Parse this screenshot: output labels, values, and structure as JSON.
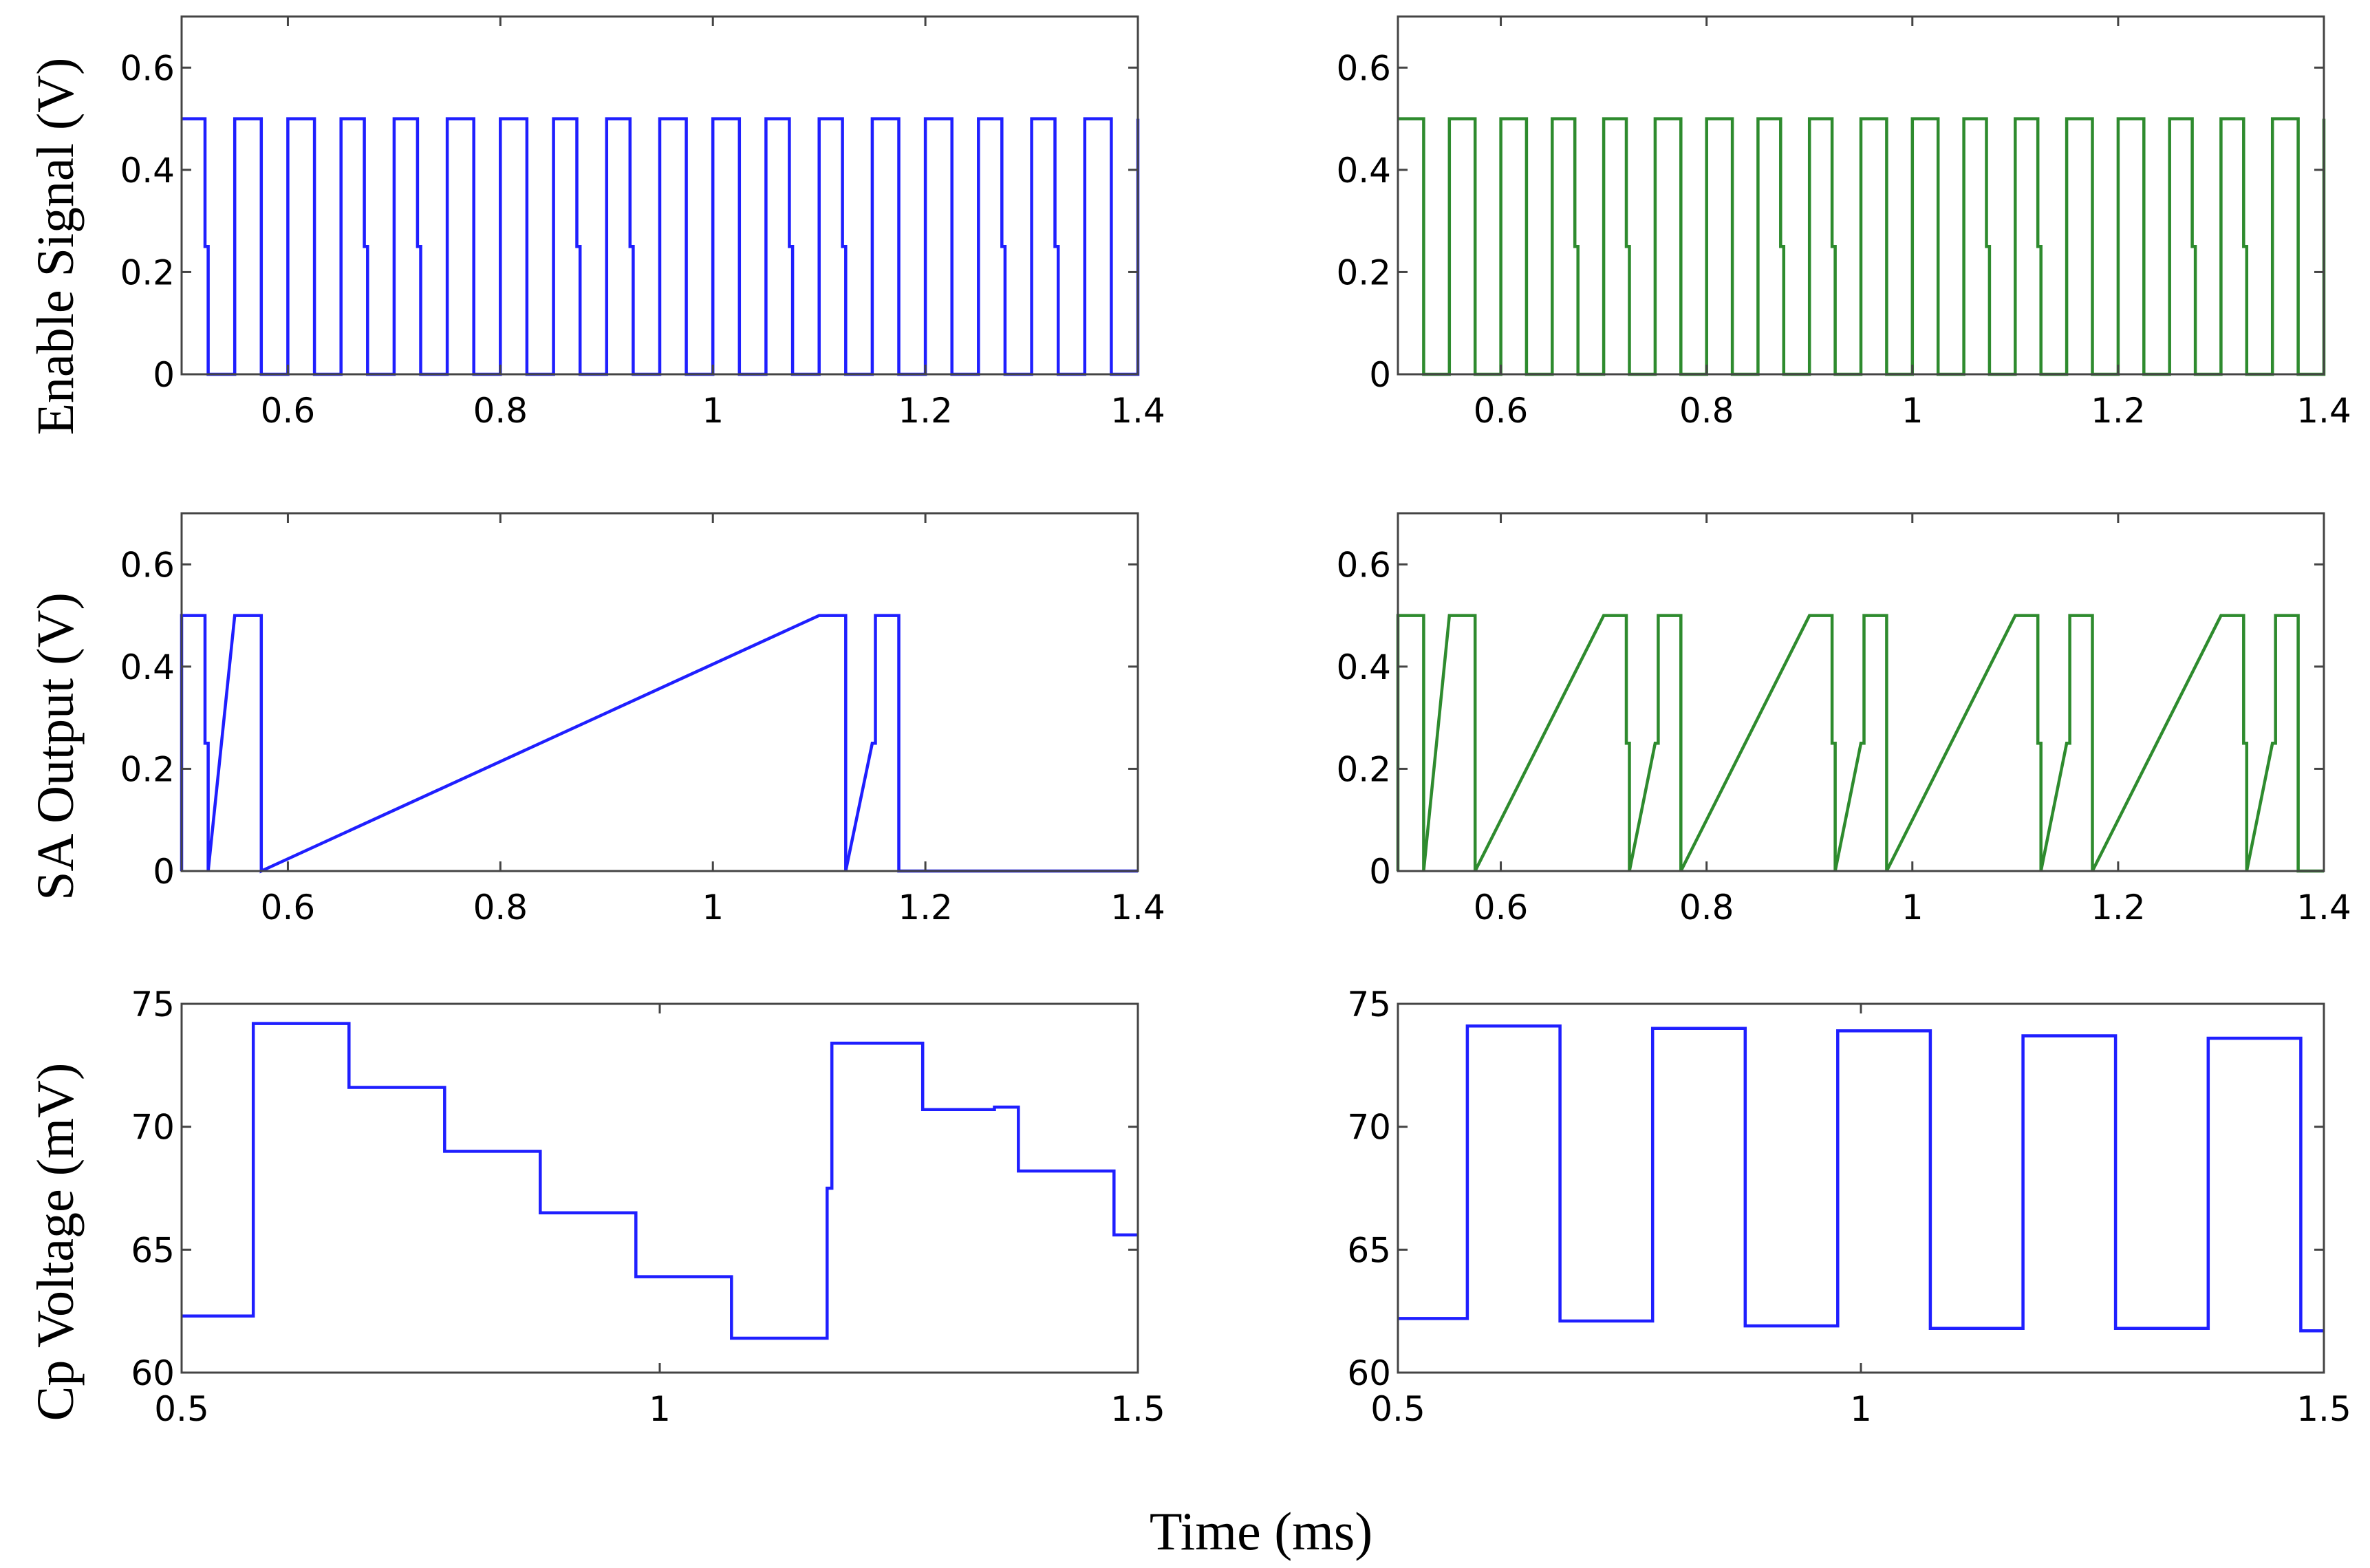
{
  "figure": {
    "x_label": "Time (ms)"
  },
  "colors": {
    "blue": "#1f1fff",
    "green": "#2e8b2e",
    "axis": "#444444"
  },
  "chart_data": [
    {
      "id": "enable-left",
      "type": "line",
      "row": 0,
      "col": 0,
      "ylabel": "Enable Signal (V)",
      "xlabel": "",
      "xlim": [
        0.5,
        1.4
      ],
      "ylim": [
        0,
        0.7
      ],
      "xticks": [
        0.6,
        0.8,
        1,
        1.2,
        1.4
      ],
      "xtick_labels": [
        "0.6",
        "0.8",
        "1",
        "1.2",
        "1.4"
      ],
      "yticks": [
        0,
        0.2,
        0.4,
        0.6
      ],
      "ytick_labels": [
        "0",
        "0.2",
        "0.4",
        "0.6"
      ],
      "series": [
        {
          "name": "Enable Signal",
          "color": "blue",
          "pulse_train": {
            "start": 0.5,
            "period": 0.05,
            "duty": 0.5,
            "count": 18,
            "high": 0.5,
            "low": 0,
            "mid_step_pulses": [
              0,
              3,
              4,
              7,
              8,
              11,
              12,
              15,
              16
            ]
          }
        }
      ]
    },
    {
      "id": "enable-right",
      "type": "line",
      "row": 0,
      "col": 1,
      "ylabel": "",
      "xlabel": "",
      "xlim": [
        0.5,
        1.4
      ],
      "ylim": [
        0,
        0.7
      ],
      "xticks": [
        0.6,
        0.8,
        1,
        1.2,
        1.4
      ],
      "xtick_labels": [
        "0.6",
        "0.8",
        "1",
        "1.2",
        "1.4"
      ],
      "yticks": [
        0,
        0.2,
        0.4,
        0.6
      ],
      "ytick_labels": [
        "0",
        "0.2",
        "0.4",
        "0.6"
      ],
      "series": [
        {
          "name": "Enable Signal",
          "color": "green",
          "pulse_train": {
            "start": 0.5,
            "period": 0.05,
            "duty": 0.5,
            "count": 18,
            "high": 0.5,
            "low": 0,
            "mid_step_pulses": [
              3,
              4,
              7,
              8,
              11,
              12,
              15,
              16
            ]
          }
        }
      ]
    },
    {
      "id": "sa-left",
      "type": "line",
      "row": 1,
      "col": 0,
      "ylabel": "SA Output (V)",
      "xlabel": "",
      "xlim": [
        0.5,
        1.4
      ],
      "ylim": [
        0,
        0.7
      ],
      "xticks": [
        0.6,
        0.8,
        1,
        1.2,
        1.4
      ],
      "xtick_labels": [
        "0.6",
        "0.8",
        "1",
        "1.2",
        "1.4"
      ],
      "yticks": [
        0,
        0.2,
        0.4,
        0.6
      ],
      "ytick_labels": [
        "0",
        "0.2",
        "0.4",
        "0.6"
      ],
      "series": [
        {
          "name": "SA Output",
          "color": "blue",
          "pulses": [
            {
              "start": 0.5,
              "end": 0.525,
              "high": 0.5,
              "fall_step": true
            },
            {
              "start": 0.55,
              "end": 0.575,
              "high": 0.5
            },
            {
              "start": 1.1,
              "end": 1.125,
              "high": 0.5
            },
            {
              "start": 1.15,
              "end": 1.175,
              "high": 0.5,
              "rise_step": true
            }
          ],
          "low": 0
        }
      ]
    },
    {
      "id": "sa-right",
      "type": "line",
      "row": 1,
      "col": 1,
      "ylabel": "",
      "xlabel": "",
      "xlim": [
        0.5,
        1.4
      ],
      "ylim": [
        0,
        0.7
      ],
      "xticks": [
        0.6,
        0.8,
        1,
        1.2,
        1.4
      ],
      "xtick_labels": [
        "0.6",
        "0.8",
        "1",
        "1.2",
        "1.4"
      ],
      "yticks": [
        0,
        0.2,
        0.4,
        0.6
      ],
      "ytick_labels": [
        "0",
        "0.2",
        "0.4",
        "0.6"
      ],
      "series": [
        {
          "name": "SA Output",
          "color": "green",
          "pulses": [
            {
              "start": 0.5,
              "end": 0.525,
              "high": 0.5
            },
            {
              "start": 0.55,
              "end": 0.575,
              "high": 0.5
            },
            {
              "start": 0.7,
              "end": 0.725,
              "high": 0.5,
              "fall_step": true
            },
            {
              "start": 0.75,
              "end": 0.775,
              "high": 0.5,
              "rise_step": true
            },
            {
              "start": 0.9,
              "end": 0.925,
              "high": 0.5,
              "fall_step": true
            },
            {
              "start": 0.95,
              "end": 0.975,
              "high": 0.5,
              "rise_step": true
            },
            {
              "start": 1.1,
              "end": 1.125,
              "high": 0.5,
              "fall_step": true
            },
            {
              "start": 1.15,
              "end": 1.175,
              "high": 0.5,
              "rise_step": true
            },
            {
              "start": 1.3,
              "end": 1.325,
              "high": 0.5,
              "fall_step": true
            },
            {
              "start": 1.35,
              "end": 1.375,
              "high": 0.5,
              "rise_step": true
            }
          ],
          "low": 0
        }
      ]
    },
    {
      "id": "cp-left",
      "type": "line",
      "row": 2,
      "col": 0,
      "ylabel": "Cp Voltage (mV)",
      "xlabel": "",
      "xlim": [
        0.5,
        1.5
      ],
      "ylim": [
        60,
        75
      ],
      "xticks": [
        0.5,
        1,
        1.5
      ],
      "xtick_labels": [
        "0.5",
        "1",
        "1.5"
      ],
      "yticks": [
        60,
        65,
        70,
        75
      ],
      "ytick_labels": [
        "60",
        "65",
        "70",
        "75"
      ],
      "series": [
        {
          "name": "Cp Voltage",
          "color": "blue",
          "steps": [
            [
              0.5,
              62.3
            ],
            [
              0.575,
              74.2
            ],
            [
              0.675,
              71.6
            ],
            [
              0.775,
              69.0
            ],
            [
              0.875,
              66.5
            ],
            [
              0.975,
              63.9
            ],
            [
              1.075,
              61.4
            ],
            [
              1.175,
              67.5
            ],
            [
              1.18,
              73.4
            ],
            [
              1.275,
              70.7
            ],
            [
              1.35,
              70.8
            ],
            [
              1.375,
              68.2
            ],
            [
              1.475,
              65.6
            ],
            [
              1.5,
              65.6
            ]
          ]
        }
      ]
    },
    {
      "id": "cp-right",
      "type": "line",
      "row": 2,
      "col": 1,
      "ylabel": "",
      "xlabel": "",
      "xlim": [
        0.5,
        1.5
      ],
      "ylim": [
        60,
        75
      ],
      "xticks": [
        0.5,
        1,
        1.5
      ],
      "xtick_labels": [
        "0.5",
        "1",
        "1.5"
      ],
      "yticks": [
        60,
        65,
        70,
        75
      ],
      "ytick_labels": [
        "60",
        "65",
        "70",
        "75"
      ],
      "series": [
        {
          "name": "Cp Voltage",
          "color": "blue",
          "steps": [
            [
              0.5,
              62.2
            ],
            [
              0.575,
              74.1
            ],
            [
              0.675,
              62.1
            ],
            [
              0.775,
              74.0
            ],
            [
              0.875,
              61.9
            ],
            [
              0.975,
              73.9
            ],
            [
              1.075,
              61.8
            ],
            [
              1.175,
              73.7
            ],
            [
              1.275,
              61.8
            ],
            [
              1.375,
              73.6
            ],
            [
              1.475,
              61.7
            ],
            [
              1.5,
              61.7
            ]
          ]
        }
      ]
    }
  ]
}
